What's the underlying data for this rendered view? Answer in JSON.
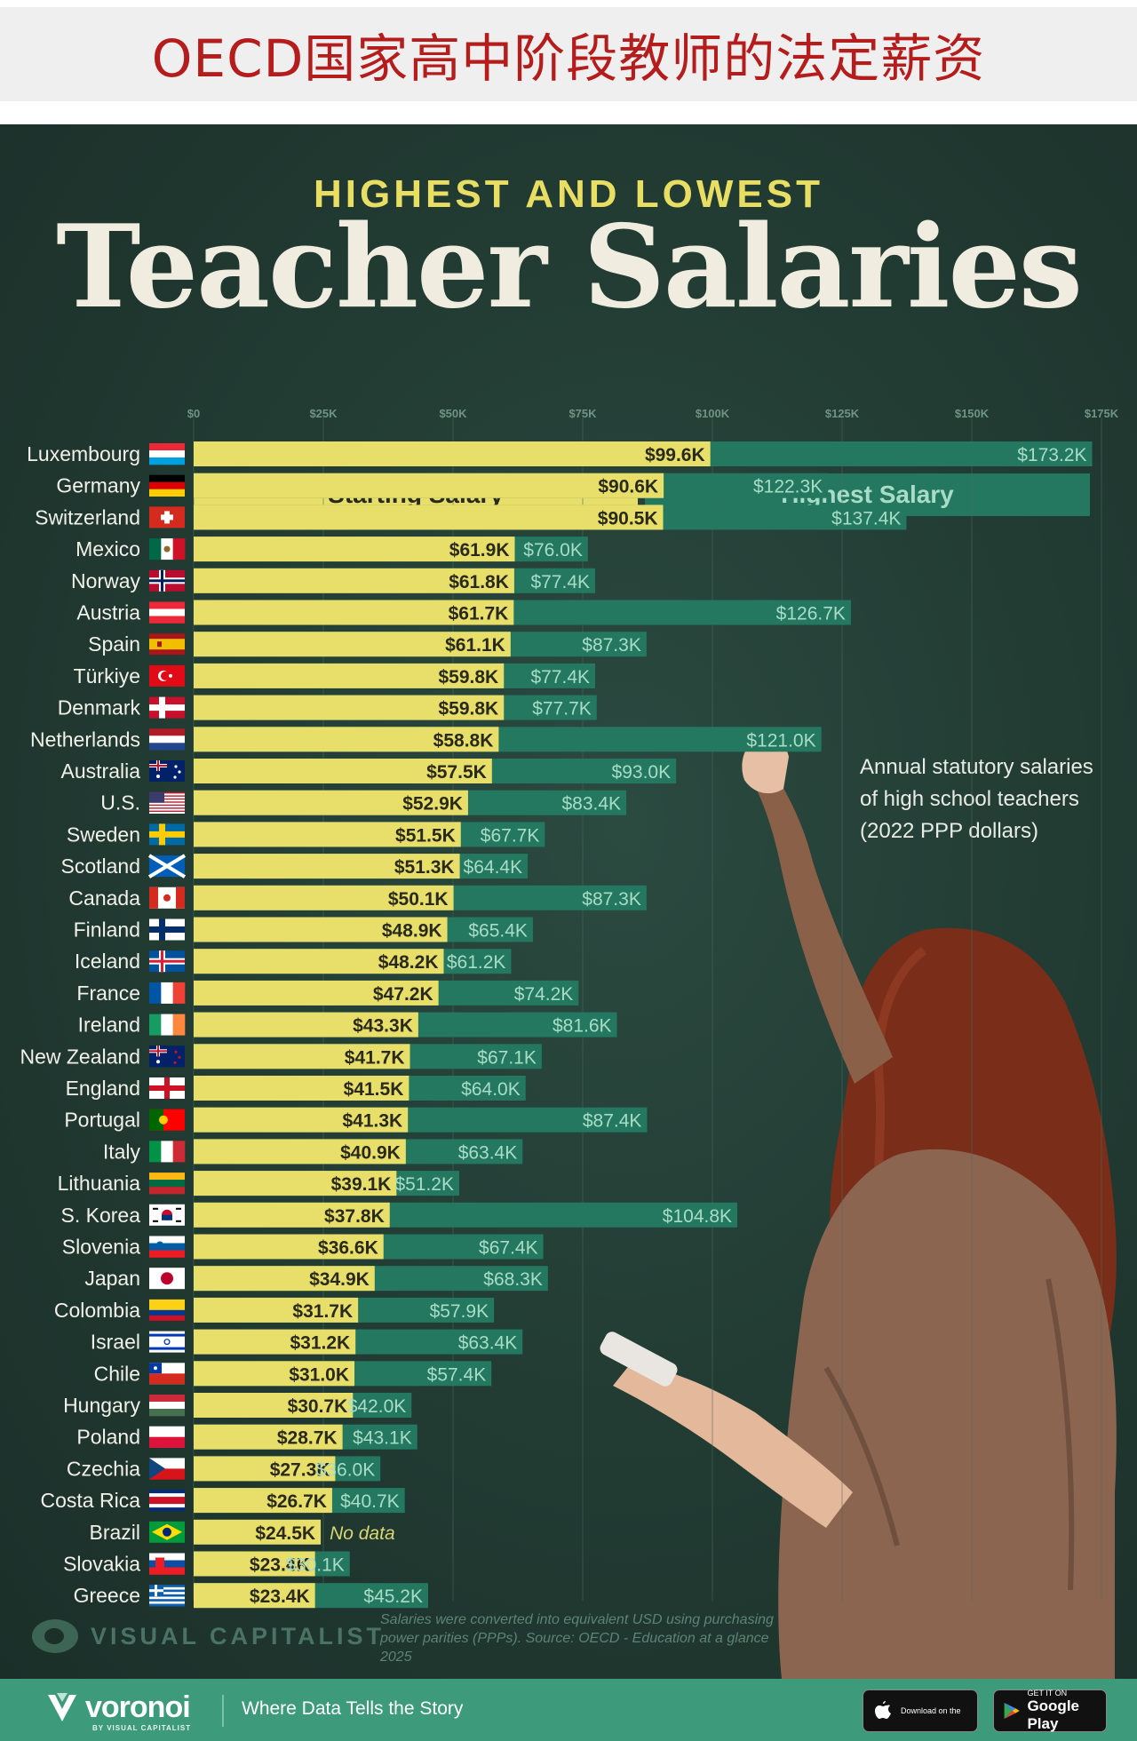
{
  "banner": {
    "title": "OECD国家高中阶段教师的法定薪资"
  },
  "header": {
    "supertitle": "HIGHEST AND LOWEST",
    "title": "Teacher Salaries"
  },
  "legend": {
    "starting": "Starting Salary",
    "highest": "Highest Salary"
  },
  "note": {
    "lines": [
      "Annual statutory salaries",
      "of high school teachers",
      "(2022 PPP dollars)"
    ]
  },
  "footer": {
    "brand": "VISUAL CAPITALIST",
    "source_lines": [
      "Salaries were converted into equivalent USD using purchasing",
      "power parities (PPPs). Source: OECD - Education at a glance 2025"
    ]
  },
  "bottom_bar": {
    "logo_name": "voronoi",
    "logo_sub": "BY VISUAL CAPITALIST",
    "tagline": "Where Data Tells the Story",
    "app_store_small": "Download on the",
    "app_store_big": "",
    "google_play_small": "GET IT ON",
    "google_play_big": "Google Play"
  },
  "colors": {
    "starting": "#e8df6a",
    "highest": "#23785f",
    "starting_text": "#2a2a1c",
    "highest_text": "#a9dcc6",
    "axis_text": "#6f9384",
    "label_text": "#f1f1ea",
    "no_data_text": "#d9d673"
  },
  "chart_data": {
    "type": "bar",
    "orientation": "horizontal",
    "unit": "USD (2022 PPP)",
    "xlim": [
      0,
      175
    ],
    "x_tick_labels": [
      "$0",
      "$25K",
      "$50K",
      "$75K",
      "$100K",
      "$125K",
      "$150K",
      "$175K"
    ],
    "x_tick_values": [
      0,
      25,
      50,
      75,
      100,
      125,
      150,
      175
    ],
    "grid": "vertical",
    "series": [
      {
        "name": "Starting Salary",
        "key": "starting"
      },
      {
        "name": "Highest Salary",
        "key": "highest"
      }
    ],
    "countries": [
      {
        "name": "Luxembourg",
        "flag": "luxembourg-flag",
        "starting": 99.6,
        "starting_label": "$99.6K",
        "highest": 173.2,
        "highest_label": "$173.2K"
      },
      {
        "name": "Germany",
        "flag": "germany-flag",
        "starting": 90.6,
        "starting_label": "$90.6K",
        "highest": 122.3,
        "highest_label": "$122.3K"
      },
      {
        "name": "Switzerland",
        "flag": "switzerland-flag",
        "starting": 90.5,
        "starting_label": "$90.5K",
        "highest": 137.4,
        "highest_label": "$137.4K"
      },
      {
        "name": "Mexico",
        "flag": "mexico-flag",
        "starting": 61.9,
        "starting_label": "$61.9K",
        "highest": 76.0,
        "highest_label": "$76.0K"
      },
      {
        "name": "Norway",
        "flag": "norway-flag",
        "starting": 61.8,
        "starting_label": "$61.8K",
        "highest": 77.4,
        "highest_label": "$77.4K"
      },
      {
        "name": "Austria",
        "flag": "austria-flag",
        "starting": 61.7,
        "starting_label": "$61.7K",
        "highest": 126.7,
        "highest_label": "$126.7K"
      },
      {
        "name": "Spain",
        "flag": "spain-flag",
        "starting": 61.1,
        "starting_label": "$61.1K",
        "highest": 87.3,
        "highest_label": "$87.3K"
      },
      {
        "name": "Türkiye",
        "flag": "turkiye-flag",
        "starting": 59.8,
        "starting_label": "$59.8K",
        "highest": 77.4,
        "highest_label": "$77.4K"
      },
      {
        "name": "Denmark",
        "flag": "denmark-flag",
        "starting": 59.8,
        "starting_label": "$59.8K",
        "highest": 77.7,
        "highest_label": "$77.7K"
      },
      {
        "name": "Netherlands",
        "flag": "netherlands-flag",
        "starting": 58.8,
        "starting_label": "$58.8K",
        "highest": 121.0,
        "highest_label": "$121.0K"
      },
      {
        "name": "Australia",
        "flag": "australia-flag",
        "starting": 57.5,
        "starting_label": "$57.5K",
        "highest": 93.0,
        "highest_label": "$93.0K"
      },
      {
        "name": "U.S.",
        "flag": "us-flag",
        "starting": 52.9,
        "starting_label": "$52.9K",
        "highest": 83.4,
        "highest_label": "$83.4K"
      },
      {
        "name": "Sweden",
        "flag": "sweden-flag",
        "starting": 51.5,
        "starting_label": "$51.5K",
        "highest": 67.7,
        "highest_label": "$67.7K"
      },
      {
        "name": "Scotland",
        "flag": "scotland-flag",
        "starting": 51.3,
        "starting_label": "$51.3K",
        "highest": 64.4,
        "highest_label": "$64.4K"
      },
      {
        "name": "Canada",
        "flag": "canada-flag",
        "starting": 50.1,
        "starting_label": "$50.1K",
        "highest": 87.3,
        "highest_label": "$87.3K"
      },
      {
        "name": "Finland",
        "flag": "finland-flag",
        "starting": 48.9,
        "starting_label": "$48.9K",
        "highest": 65.4,
        "highest_label": "$65.4K"
      },
      {
        "name": "Iceland",
        "flag": "iceland-flag",
        "starting": 48.2,
        "starting_label": "$48.2K",
        "highest": 61.2,
        "highest_label": "$61.2K"
      },
      {
        "name": "France",
        "flag": "france-flag",
        "starting": 47.2,
        "starting_label": "$47.2K",
        "highest": 74.2,
        "highest_label": "$74.2K"
      },
      {
        "name": "Ireland",
        "flag": "ireland-flag",
        "starting": 43.3,
        "starting_label": "$43.3K",
        "highest": 81.6,
        "highest_label": "$81.6K"
      },
      {
        "name": "New Zealand",
        "flag": "new-zealand-flag",
        "starting": 41.7,
        "starting_label": "$41.7K",
        "highest": 67.1,
        "highest_label": "$67.1K"
      },
      {
        "name": "England",
        "flag": "england-flag",
        "starting": 41.5,
        "starting_label": "$41.5K",
        "highest": 64.0,
        "highest_label": "$64.0K"
      },
      {
        "name": "Portugal",
        "flag": "portugal-flag",
        "starting": 41.3,
        "starting_label": "$41.3K",
        "highest": 87.4,
        "highest_label": "$87.4K"
      },
      {
        "name": "Italy",
        "flag": "italy-flag",
        "starting": 40.9,
        "starting_label": "$40.9K",
        "highest": 63.4,
        "highest_label": "$63.4K"
      },
      {
        "name": "Lithuania",
        "flag": "lithuania-flag",
        "starting": 39.1,
        "starting_label": "$39.1K",
        "highest": 51.2,
        "highest_label": "$51.2K"
      },
      {
        "name": "S. Korea",
        "flag": "south-korea-flag",
        "starting": 37.8,
        "starting_label": "$37.8K",
        "highest": 104.8,
        "highest_label": "$104.8K"
      },
      {
        "name": "Slovenia",
        "flag": "slovenia-flag",
        "starting": 36.6,
        "starting_label": "$36.6K",
        "highest": 67.4,
        "highest_label": "$67.4K"
      },
      {
        "name": "Japan",
        "flag": "japan-flag",
        "starting": 34.9,
        "starting_label": "$34.9K",
        "highest": 68.3,
        "highest_label": "$68.3K"
      },
      {
        "name": "Colombia",
        "flag": "colombia-flag",
        "starting": 31.7,
        "starting_label": "$31.7K",
        "highest": 57.9,
        "highest_label": "$57.9K"
      },
      {
        "name": "Israel",
        "flag": "israel-flag",
        "starting": 31.2,
        "starting_label": "$31.2K",
        "highest": 63.4,
        "highest_label": "$63.4K"
      },
      {
        "name": "Chile",
        "flag": "chile-flag",
        "starting": 31.0,
        "starting_label": "$31.0K",
        "highest": 57.4,
        "highest_label": "$57.4K"
      },
      {
        "name": "Hungary",
        "flag": "hungary-flag",
        "starting": 30.7,
        "starting_label": "$30.7K",
        "highest": 42.0,
        "highest_label": "$42.0K"
      },
      {
        "name": "Poland",
        "flag": "poland-flag",
        "starting": 28.7,
        "starting_label": "$28.7K",
        "highest": 43.1,
        "highest_label": "$43.1K"
      },
      {
        "name": "Czechia",
        "flag": "czechia-flag",
        "starting": 27.3,
        "starting_label": "$27.3K",
        "highest": 36.0,
        "highest_label": "$36.0K"
      },
      {
        "name": "Costa Rica",
        "flag": "costa-rica-flag",
        "starting": 26.7,
        "starting_label": "$26.7K",
        "highest": 40.7,
        "highest_label": "$40.7K"
      },
      {
        "name": "Brazil",
        "flag": "brazil-flag",
        "starting": 24.5,
        "starting_label": "$24.5K",
        "highest": null,
        "highest_label": "No data"
      },
      {
        "name": "Slovakia",
        "flag": "slovakia-flag",
        "starting": 23.4,
        "starting_label": "$23.4K",
        "highest": 30.1,
        "highest_label": "$30.1K"
      },
      {
        "name": "Greece",
        "flag": "greece-flag",
        "starting": 23.4,
        "starting_label": "$23.4K",
        "highest": 45.2,
        "highest_label": "$45.2K"
      }
    ]
  }
}
